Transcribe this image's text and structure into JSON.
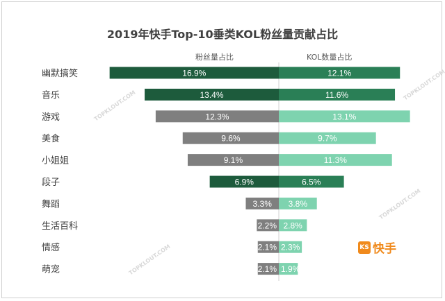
{
  "chart_data": {
    "type": "bar",
    "orientation": "horizontal-butterfly",
    "title": "2019年快手Top-10垂类KOL粉丝量贡献占比",
    "categories": [
      "幽默搞笑",
      "音乐",
      "游戏",
      "美食",
      "小姐姐",
      "段子",
      "舞蹈",
      "生活百科",
      "情感",
      "萌宠"
    ],
    "series": [
      {
        "name": "粉丝量占比",
        "side": "left",
        "values": [
          16.9,
          13.4,
          12.3,
          9.6,
          9.1,
          6.9,
          3.3,
          2.2,
          2.1,
          2.1
        ],
        "labels": [
          "16.9%",
          "13.4%",
          "12.3%",
          "9.6%",
          "9.1%",
          "6.9%",
          "3.3%",
          "2.2%",
          "2.1%",
          "2.1%"
        ],
        "colors": [
          "#1d5b3c",
          "#1d5b3c",
          "#7f7f7f",
          "#7f7f7f",
          "#7f7f7f",
          "#1d5b3c",
          "#7f7f7f",
          "#7f7f7f",
          "#7f7f7f",
          "#7f7f7f"
        ]
      },
      {
        "name": "KOL数量占比",
        "side": "right",
        "values": [
          12.1,
          11.6,
          13.1,
          9.7,
          11.3,
          6.5,
          3.8,
          2.8,
          2.3,
          1.9
        ],
        "labels": [
          "12.1%",
          "11.6%",
          "13.1%",
          "9.7%",
          "11.3%",
          "6.5%",
          "3.8%",
          "2.8%",
          "2.3%",
          "1.9%"
        ],
        "colors": [
          "#2a7f56",
          "#2a7f56",
          "#7ed3af",
          "#7ed3af",
          "#7ed3af",
          "#2a7f56",
          "#7ed3af",
          "#7ed3af",
          "#7ed3af",
          "#7ed3af"
        ]
      }
    ],
    "grid": false,
    "legend": "top"
  },
  "logo": {
    "text": "快手",
    "color": "#f08a1c"
  },
  "watermark": "TOPKLOUT.COM"
}
